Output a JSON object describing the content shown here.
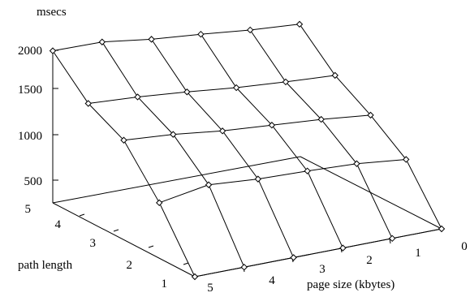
{
  "chart_data": {
    "type": "surface",
    "zlabel": "msecs",
    "xlabel": "page size (kbytes)",
    "ylabel": "path length",
    "x_ticks": [
      "5",
      "4",
      "3",
      "2",
      "1",
      "0"
    ],
    "y_ticks": [
      "5",
      "4",
      "3",
      "2",
      "1"
    ],
    "z_ticks": [
      "2000",
      "1500",
      "1000",
      "500"
    ],
    "points": [
      [
        2000,
        1990,
        1900,
        1840,
        1770,
        1720
      ],
      [
        1550,
        1510,
        1450,
        1380,
        1330,
        1290
      ],
      [
        1310,
        1260,
        1180,
        1130,
        1080,
        1010
      ],
      [
        730,
        840,
        790,
        770,
        740,
        670
      ],
      [
        0,
        0,
        0,
        0,
        0,
        0
      ]
    ]
  }
}
